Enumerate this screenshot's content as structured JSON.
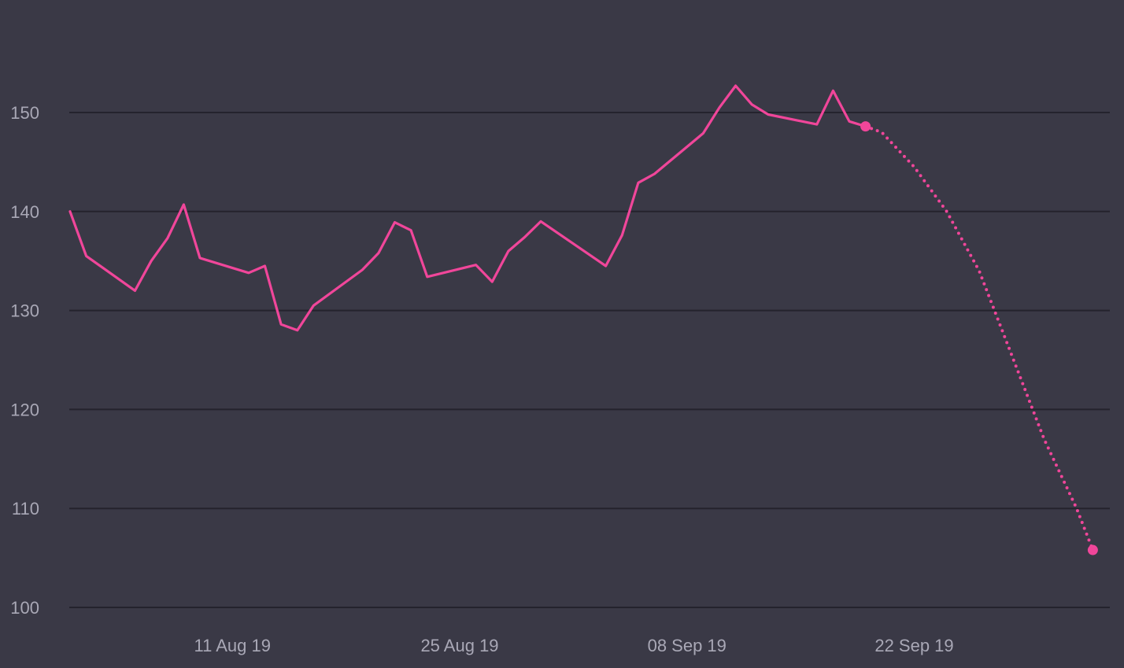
{
  "chart_data": {
    "type": "line",
    "title": "",
    "xlabel": "",
    "ylabel": "",
    "ylim": [
      100,
      155
    ],
    "yticks": [
      100,
      110,
      120,
      130,
      140,
      150
    ],
    "ytick_labels": [
      "100",
      "110",
      "120",
      "130",
      "140",
      "150"
    ],
    "xlim": [
      "2019-08-01",
      "2019-10-04"
    ],
    "xticks": [
      "2019-08-11",
      "2019-08-25",
      "2019-09-08",
      "2019-09-22"
    ],
    "xtick_labels": [
      "11 Aug 19",
      "25 Aug 19",
      "08 Sep 19",
      "22 Sep 19"
    ],
    "grid": true,
    "colors": {
      "background": "#3a3946",
      "grid": "#24232d",
      "line": "#f0469a",
      "tick_text": "#a9a8b6"
    },
    "series": [
      {
        "style": "solid",
        "points": [
          {
            "x": "2019-08-01",
            "y": 140.0
          },
          {
            "x": "2019-08-02",
            "y": 135.5
          },
          {
            "x": "2019-08-05",
            "y": 132.0
          },
          {
            "x": "2019-08-06",
            "y": 135.0
          },
          {
            "x": "2019-08-07",
            "y": 137.3
          },
          {
            "x": "2019-08-08",
            "y": 140.7
          },
          {
            "x": "2019-08-09",
            "y": 135.3
          },
          {
            "x": "2019-08-12",
            "y": 133.8
          },
          {
            "x": "2019-08-13",
            "y": 134.5
          },
          {
            "x": "2019-08-14",
            "y": 128.6
          },
          {
            "x": "2019-08-15",
            "y": 128.0
          },
          {
            "x": "2019-08-16",
            "y": 130.5
          },
          {
            "x": "2019-08-19",
            "y": 134.1
          },
          {
            "x": "2019-08-20",
            "y": 135.8
          },
          {
            "x": "2019-08-21",
            "y": 138.9
          },
          {
            "x": "2019-08-22",
            "y": 138.1
          },
          {
            "x": "2019-08-23",
            "y": 133.4
          },
          {
            "x": "2019-08-26",
            "y": 134.6
          },
          {
            "x": "2019-08-27",
            "y": 132.9
          },
          {
            "x": "2019-08-28",
            "y": 136.0
          },
          {
            "x": "2019-08-29",
            "y": 137.4
          },
          {
            "x": "2019-08-30",
            "y": 139.0
          },
          {
            "x": "2019-09-03",
            "y": 134.5
          },
          {
            "x": "2019-09-04",
            "y": 137.6
          },
          {
            "x": "2019-09-05",
            "y": 142.9
          },
          {
            "x": "2019-09-06",
            "y": 143.8
          },
          {
            "x": "2019-09-09",
            "y": 147.9
          },
          {
            "x": "2019-09-10",
            "y": 150.5
          },
          {
            "x": "2019-09-11",
            "y": 152.7
          },
          {
            "x": "2019-09-12",
            "y": 150.8
          },
          {
            "x": "2019-09-13",
            "y": 149.8
          },
          {
            "x": "2019-09-16",
            "y": 148.8
          },
          {
            "x": "2019-09-17",
            "y": 152.2
          },
          {
            "x": "2019-09-18",
            "y": 149.1
          },
          {
            "x": "2019-09-19",
            "y": 148.6
          }
        ]
      },
      {
        "style": "dotted",
        "points": [
          {
            "x": "2019-09-19",
            "y": 148.6
          },
          {
            "x": "2019-09-20",
            "y": 148.0
          },
          {
            "x": "2019-09-22",
            "y": 144.5
          },
          {
            "x": "2019-09-24",
            "y": 140.0
          },
          {
            "x": "2019-09-26",
            "y": 134.0
          },
          {
            "x": "2019-09-28",
            "y": 125.5
          },
          {
            "x": "2019-09-30",
            "y": 117.0
          },
          {
            "x": "2019-10-02",
            "y": 110.0
          },
          {
            "x": "2019-10-03",
            "y": 105.8
          }
        ]
      }
    ],
    "markers": [
      {
        "x": "2019-09-19",
        "y": 148.6
      },
      {
        "x": "2019-10-03",
        "y": 105.8
      }
    ]
  }
}
